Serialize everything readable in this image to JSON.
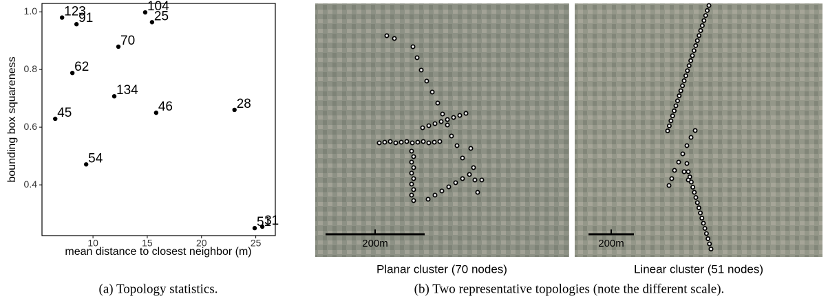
{
  "chart_data": {
    "type": "scatter",
    "xlabel": "mean distance to closest neighbor (m)",
    "ylabel": "bounding box squareness",
    "x": [
      7.15,
      8.48,
      14.81,
      15.44,
      12.34,
      8.1,
      11.96,
      15.82,
      23.04,
      6.52,
      9.37,
      24.9,
      25.6
    ],
    "values": [
      0.98,
      0.957,
      0.998,
      0.964,
      0.879,
      0.788,
      0.707,
      0.65,
      0.66,
      0.629,
      0.471,
      0.25,
      0.255
    ],
    "labels": [
      "123",
      "91",
      "104",
      "25",
      "70",
      "62",
      "134",
      "46",
      "28",
      "45",
      "54",
      "51",
      "31"
    ],
    "color": "#000000",
    "xlim": [
      5.3,
      26.8
    ],
    "xticks": [
      10,
      15,
      20,
      25
    ],
    "ylim": [
      0.224,
      1.029
    ],
    "yticks": [
      {
        "value": 1,
        "label": "1.0"
      },
      0.8,
      0.6,
      0.4
    ],
    "grid": false
  },
  "caption_a": "(a) Topology statistics.",
  "maps": [
    {
      "scale": "200m",
      "label": "Planar cluster (70 nodes)"
    },
    {
      "scale": "200m",
      "label": "Linear cluster (51 nodes)"
    }
  ],
  "caption_b": "(b) Two representative topologies (note the different scale)."
}
